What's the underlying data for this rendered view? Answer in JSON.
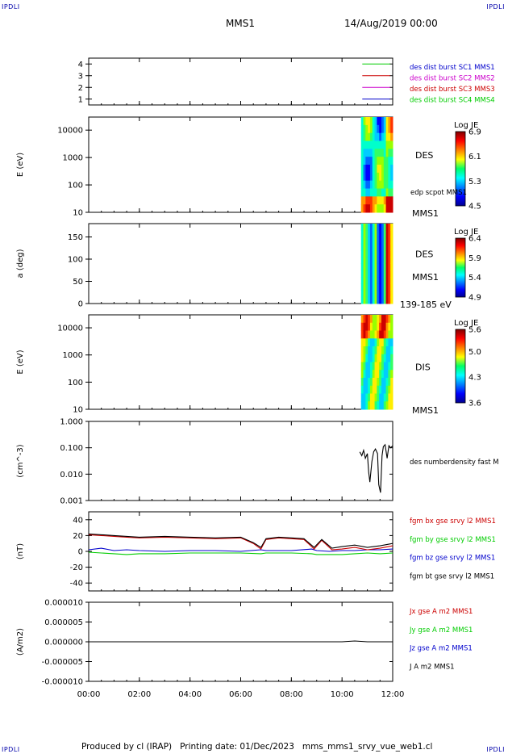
{
  "header": {
    "corner_tl": "IPDLI",
    "corner_tr": "IPDLI",
    "corner_bl": "IPDLI",
    "corner_br": "IPDLI",
    "mission": "MMS1",
    "date": "14/Aug/2019 00:00"
  },
  "footer": {
    "text": "Produced by cl (IRAP)   Printing date: 01/Dec/2023   mms_mms1_srvy_vue_web1.cl"
  },
  "colors": {
    "blue": "#0000cc",
    "magenta": "#cc00cc",
    "red": "#cc0000",
    "green": "#00cc00",
    "black": "#000000"
  },
  "chart_data": [
    {
      "type": "line",
      "name": "burst-availability",
      "yticks": [
        "4",
        "3",
        "2",
        "1"
      ],
      "ylim": [
        0.5,
        4.5
      ],
      "legend": [
        {
          "label": "des dist burst SC1 MMS1",
          "color": "#0000cc"
        },
        {
          "label": "des dist burst SC2 MMS2",
          "color": "#cc00cc"
        },
        {
          "label": "des dist burst SC3 MMS3",
          "color": "#cc0000"
        },
        {
          "label": "des dist burst SC4 MMS4",
          "color": "#00cc00"
        }
      ],
      "series": [
        {
          "level": 4,
          "color": "#00cc00",
          "segments": [
            [
              10.8,
              11.9
            ]
          ]
        },
        {
          "level": 3,
          "color": "#cc0000",
          "segments": [
            [
              10.8,
              11.9
            ]
          ]
        },
        {
          "level": 2,
          "color": "#cc00cc",
          "segments": [
            [
              10.8,
              11.9
            ]
          ]
        },
        {
          "level": 1,
          "color": "#0000cc",
          "segments": [
            [
              10.8,
              11.9
            ]
          ]
        }
      ]
    },
    {
      "type": "heatmap",
      "name": "des-energy-spectrogram",
      "ylabel": "E (eV)",
      "yscale": "log",
      "yticks": [
        "10000",
        "1000",
        "100",
        "10"
      ],
      "ylim": [
        10,
        30000
      ],
      "data_xrange": [
        10.75,
        12.0
      ],
      "side_label": "DES",
      "side_label2": "edp scpot MMS1",
      "bottom_label": "MMS1",
      "colorbar": {
        "title": "Log JE",
        "ticks": [
          "6.9",
          "6.1",
          "5.3",
          "4.5"
        ],
        "range": [
          4.5,
          6.9
        ]
      }
    },
    {
      "type": "heatmap",
      "name": "des-pitch-angle",
      "ylabel": "a (deg)",
      "yticks": [
        "150",
        "100",
        "50",
        "0"
      ],
      "ylim": [
        0,
        180
      ],
      "data_xrange": [
        10.75,
        12.0
      ],
      "side_label": "DES",
      "side_label2": "MMS1",
      "bottom_label": "139-185 eV",
      "colorbar": {
        "title": "Log JE",
        "ticks": [
          "6.4",
          "5.9",
          "5.4",
          "4.9"
        ],
        "range": [
          4.9,
          6.4
        ]
      }
    },
    {
      "type": "heatmap",
      "name": "dis-energy-spectrogram",
      "ylabel": "E (eV)",
      "yscale": "log",
      "yticks": [
        "10000",
        "1000",
        "100",
        "10"
      ],
      "ylim": [
        10,
        30000
      ],
      "data_xrange": [
        10.75,
        12.0
      ],
      "side_label": "DIS",
      "bottom_label": "MMS1",
      "colorbar": {
        "title": "Log JE",
        "ticks": [
          "5.6",
          "5.0",
          "4.3",
          "3.6"
        ],
        "range": [
          3.6,
          5.6
        ]
      }
    },
    {
      "type": "line",
      "name": "number-density",
      "ylabel": "(cm^-3)",
      "yscale": "log",
      "yticks": [
        "1.000",
        "0.100",
        "0.010",
        "0.001"
      ],
      "ylim": [
        0.001,
        1.0
      ],
      "legend": [
        {
          "label": "des numberdensity fast M",
          "color": "#000000"
        }
      ],
      "series": [
        {
          "color": "#000000",
          "x": [
            10.7,
            10.78,
            10.85,
            10.92,
            11.0,
            11.05,
            11.1,
            11.18,
            11.25,
            11.32,
            11.4,
            11.45,
            11.52,
            11.58,
            11.63,
            11.7,
            11.78,
            11.85,
            11.92,
            12.0
          ],
          "y": [
            0.07,
            0.05,
            0.08,
            0.04,
            0.06,
            0.012,
            0.005,
            0.03,
            0.07,
            0.09,
            0.06,
            0.004,
            0.002,
            0.05,
            0.11,
            0.13,
            0.04,
            0.12,
            0.1,
            0.12
          ]
        }
      ]
    },
    {
      "type": "line",
      "name": "magnetic-field",
      "ylabel": "(nT)",
      "yticks": [
        "40",
        "20",
        "0",
        "-20",
        "-40"
      ],
      "ylim": [
        -50,
        50
      ],
      "legend": [
        {
          "label": "fgm bx gse srvy l2 MMS1",
          "color": "#cc0000"
        },
        {
          "label": "fgm by gse srvy l2 MMS1",
          "color": "#00cc00"
        },
        {
          "label": "fgm bz gse srvy l2 MMS1",
          "color": "#0000cc"
        },
        {
          "label": "fgm bt gse srvy l2 MMS1",
          "color": "#000000"
        }
      ],
      "series": [
        {
          "color": "#00cc00",
          "x": [
            0,
            0.5,
            1,
            1.5,
            2,
            3,
            4,
            5,
            6,
            6.8,
            7,
            8,
            8.8,
            9,
            9.5,
            10,
            10.5,
            11,
            11.5,
            12
          ],
          "y": [
            -1,
            -2,
            -3,
            -4,
            -3,
            -3,
            -2,
            -2,
            -2,
            -3,
            -2,
            -2,
            -3,
            -4,
            -4,
            -4,
            -3,
            -2,
            -3,
            -2
          ]
        },
        {
          "color": "#0000cc",
          "x": [
            0,
            0.5,
            1,
            1.5,
            2,
            3,
            4,
            5,
            6,
            6.8,
            7,
            8,
            8.8,
            9,
            9.5,
            10,
            10.5,
            11,
            11.5,
            12
          ],
          "y": [
            2,
            4,
            1,
            2,
            1,
            0,
            1,
            1,
            0,
            2,
            1,
            1,
            3,
            1,
            0,
            1,
            1,
            2,
            2,
            3
          ]
        },
        {
          "color": "#cc0000",
          "x": [
            0,
            0.5,
            1,
            1.5,
            2,
            3,
            4,
            5,
            6,
            6.5,
            6.8,
            7,
            7.5,
            8,
            8.5,
            8.9,
            9.2,
            9.6,
            10,
            10.5,
            11,
            11.5,
            12
          ],
          "y": [
            21,
            20,
            19,
            18,
            17,
            18,
            17,
            16,
            17,
            10,
            3,
            15,
            17,
            16,
            15,
            3,
            14,
            2,
            3,
            5,
            2,
            4,
            7
          ]
        },
        {
          "color": "#000000",
          "x": [
            0,
            0.5,
            1,
            1.5,
            2,
            3,
            4,
            5,
            6,
            6.5,
            6.8,
            7,
            7.5,
            8,
            8.5,
            8.9,
            9.2,
            9.6,
            10,
            10.5,
            11,
            11.5,
            12
          ],
          "y": [
            22,
            21,
            20,
            19,
            18,
            19,
            18,
            17,
            18,
            11,
            5,
            16,
            18,
            17,
            16,
            5,
            15,
            4,
            6,
            8,
            5,
            7,
            10
          ]
        }
      ]
    },
    {
      "type": "line",
      "name": "current-density",
      "ylabel": "(A/m2)",
      "yticks": [
        "0.000010",
        "0.000005",
        "0.000000",
        "-0.000005",
        "-0.000010"
      ],
      "ylim": [
        -1e-05,
        1e-05
      ],
      "legend": [
        {
          "label": "Jx gse A m2 MMS1",
          "color": "#cc0000"
        },
        {
          "label": "Jy gse A m2 MMS1",
          "color": "#00cc00"
        },
        {
          "label": "Jz gse A m2 MMS1",
          "color": "#0000cc"
        },
        {
          "label": "J A m2 MMS1",
          "color": "#000000"
        }
      ],
      "series": [
        {
          "color": "#000000",
          "x": [
            0,
            2,
            4,
            6,
            8,
            10,
            10.5,
            11,
            12
          ],
          "y": [
            0,
            0,
            0,
            0,
            0,
            0,
            2e-07,
            0,
            0
          ]
        }
      ]
    }
  ],
  "time_axis": {
    "range": [
      0,
      12
    ],
    "ticks": [
      "00:00",
      "02:00",
      "04:00",
      "06:00",
      "08:00",
      "10:00",
      "12:00"
    ]
  }
}
